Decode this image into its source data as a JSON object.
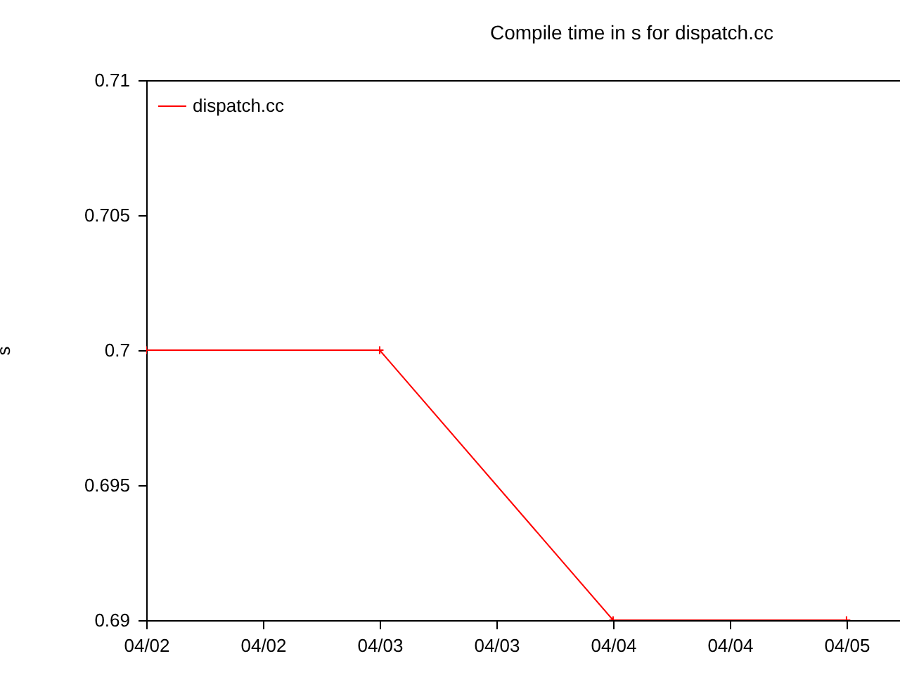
{
  "chart_data": {
    "type": "line",
    "title": "Compile time in s for dispatch.cc",
    "ylabel": "s",
    "x": [
      "--04-02",
      "--04-03",
      "--04-04",
      "--04-05",
      null
    ],
    "series": [
      {
        "name": "dispatch.cc",
        "color": "#ff0000",
        "values": [
          0.7,
          0.7,
          0.69,
          0.69,
          null
        ]
      }
    ],
    "xlim": [
      "--04-02",
      "--04-05T05:30"
    ],
    "xticks": [
      {
        "value": "--04-02",
        "label": "04/02"
      },
      {
        "value": "--04-02T12:00",
        "label": "04/02"
      },
      {
        "value": "--04-03",
        "label": "04/03"
      },
      {
        "value": "--04-03T12:00",
        "label": "04/03"
      },
      {
        "value": "--04-04",
        "label": "04/04"
      },
      {
        "value": "--04-04T12:00",
        "label": "04/04"
      },
      {
        "value": "--04-05",
        "label": "04/05"
      }
    ],
    "ylim": [
      0.69,
      0.71
    ],
    "yticks": [
      0.69,
      0.695,
      0.7,
      0.705,
      0.71
    ],
    "grid": false,
    "legend": "top left",
    "marker": "cross",
    "line_style": "solid"
  }
}
